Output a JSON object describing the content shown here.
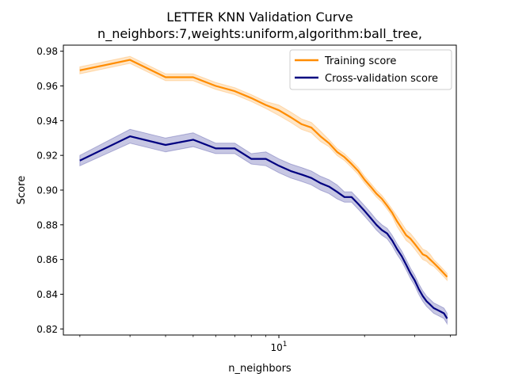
{
  "chart_data": {
    "type": "line",
    "title": "LETTER KNN Validation Curve",
    "subtitle": "n_neighbors:7,weights:uniform,algorithm:ball_tree,",
    "xlabel": "n_neighbors",
    "ylabel": "Score",
    "xscale": "log",
    "xlim": [
      1.75,
      42
    ],
    "ylim": [
      0.8165,
      0.9835
    ],
    "x_major_tick_label": "10",
    "y_ticks": [
      "0.82",
      "0.84",
      "0.86",
      "0.88",
      "0.90",
      "0.92",
      "0.94",
      "0.96",
      "0.98"
    ],
    "grid": false,
    "legend_position": "top-right",
    "x": [
      2,
      3,
      4,
      5,
      6,
      7,
      8,
      9,
      10,
      11,
      12,
      13,
      14,
      15,
      16,
      17,
      18,
      19,
      20,
      21,
      22,
      23,
      24,
      25,
      26,
      27,
      28,
      29,
      30,
      31,
      32,
      33,
      34,
      35,
      36,
      37,
      38,
      39
    ],
    "series": [
      {
        "name": "Training score",
        "color": "#ff8c00",
        "values": [
          0.969,
          0.975,
          0.965,
          0.965,
          0.96,
          0.957,
          0.953,
          0.949,
          0.946,
          0.942,
          0.938,
          0.936,
          0.931,
          0.927,
          0.922,
          0.919,
          0.915,
          0.911,
          0.906,
          0.902,
          0.898,
          0.895,
          0.891,
          0.887,
          0.882,
          0.878,
          0.874,
          0.872,
          0.869,
          0.866,
          0.863,
          0.862,
          0.86,
          0.858,
          0.856,
          0.854,
          0.852,
          0.85
        ],
        "band": [
          0.002,
          0.002,
          0.002,
          0.002,
          0.002,
          0.002,
          0.002,
          0.002,
          0.003,
          0.003,
          0.003,
          0.003,
          0.003,
          0.002,
          0.002,
          0.002,
          0.002,
          0.002,
          0.002,
          0.002,
          0.002,
          0.002,
          0.002,
          0.002,
          0.003,
          0.003,
          0.003,
          0.003,
          0.003,
          0.003,
          0.003,
          0.003,
          0.003,
          0.002,
          0.002,
          0.002,
          0.002,
          0.002
        ]
      },
      {
        "name": "Cross-validation score",
        "color": "#000080",
        "values": [
          0.917,
          0.931,
          0.926,
          0.929,
          0.924,
          0.924,
          0.918,
          0.918,
          0.914,
          0.911,
          0.909,
          0.907,
          0.904,
          0.902,
          0.899,
          0.896,
          0.896,
          0.892,
          0.888,
          0.884,
          0.88,
          0.877,
          0.875,
          0.871,
          0.866,
          0.862,
          0.857,
          0.852,
          0.848,
          0.843,
          0.839,
          0.836,
          0.834,
          0.832,
          0.831,
          0.83,
          0.829,
          0.826
        ],
        "band": [
          0.003,
          0.004,
          0.004,
          0.004,
          0.003,
          0.003,
          0.003,
          0.004,
          0.004,
          0.004,
          0.004,
          0.004,
          0.004,
          0.004,
          0.004,
          0.003,
          0.003,
          0.003,
          0.003,
          0.003,
          0.003,
          0.003,
          0.003,
          0.003,
          0.003,
          0.003,
          0.003,
          0.003,
          0.003,
          0.003,
          0.003,
          0.003,
          0.003,
          0.003,
          0.003,
          0.003,
          0.003,
          0.003
        ]
      }
    ]
  }
}
